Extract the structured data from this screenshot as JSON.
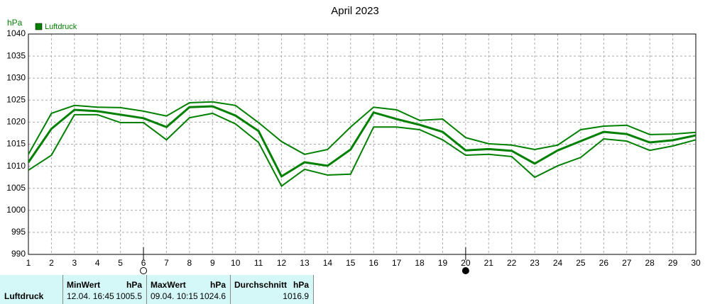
{
  "chart_data": {
    "type": "line",
    "title": "April 2023",
    "y_unit": "hPa",
    "x": [
      1,
      2,
      3,
      4,
      5,
      6,
      7,
      8,
      9,
      10,
      11,
      12,
      13,
      14,
      15,
      16,
      17,
      18,
      19,
      20,
      21,
      22,
      23,
      24,
      25,
      26,
      27,
      28,
      29,
      30
    ],
    "series": [
      {
        "name": "Luftdruck",
        "color": "#008000",
        "values": [
          1010.9,
          1018.5,
          1022.8,
          1022.5,
          1021.7,
          1020.9,
          1018.9,
          1023.4,
          1023.6,
          1021.5,
          1018.0,
          1007.7,
          1010.9,
          1010.1,
          1013.8,
          1022.2,
          1020.7,
          1019.4,
          1017.8,
          1013.6,
          1013.9,
          1013.5,
          1010.6,
          1013.6,
          1015.7,
          1017.8,
          1017.3,
          1015.4,
          1015.9,
          1017.0
        ],
        "max": [
          1012.7,
          1022.0,
          1023.8,
          1023.4,
          1023.3,
          1022.5,
          1021.4,
          1024.4,
          1024.6,
          1023.8,
          1019.9,
          1015.6,
          1012.7,
          1013.8,
          1018.9,
          1023.4,
          1022.8,
          1020.4,
          1020.7,
          1016.5,
          1015.1,
          1014.8,
          1013.8,
          1014.8,
          1018.3,
          1019.1,
          1019.3,
          1017.2,
          1017.3,
          1017.7
        ],
        "min": [
          1009.1,
          1012.5,
          1021.7,
          1021.7,
          1019.9,
          1019.9,
          1016.0,
          1021.0,
          1022.0,
          1019.6,
          1015.4,
          1005.5,
          1009.3,
          1008.0,
          1008.2,
          1018.9,
          1018.9,
          1018.3,
          1016.0,
          1012.5,
          1012.7,
          1012.2,
          1007.5,
          1010.1,
          1012.0,
          1016.2,
          1015.7,
          1013.6,
          1014.6,
          1016.0
        ]
      }
    ],
    "xlim": [
      1,
      30
    ],
    "ylim": [
      990,
      1040
    ],
    "xticks": [
      1,
      2,
      3,
      4,
      5,
      6,
      7,
      8,
      9,
      10,
      11,
      12,
      13,
      14,
      15,
      16,
      17,
      18,
      19,
      20,
      21,
      22,
      23,
      24,
      25,
      26,
      27,
      28,
      29,
      30
    ],
    "yticks": [
      990,
      995,
      1000,
      1005,
      1010,
      1015,
      1020,
      1025,
      1030,
      1035,
      1040
    ],
    "grid": true,
    "moon": {
      "full": 6,
      "new": 20
    }
  },
  "stats": {
    "columns": [
      {
        "header": "MinWert",
        "unit": "hPa",
        "time": "12.04.  16:45",
        "value": 1005.5
      },
      {
        "header": "MaxWert",
        "unit": "hPa",
        "time": "09.04.  10:15",
        "value": 1024.6
      },
      {
        "header": "Durchschnitt",
        "unit": "hPa",
        "value": 1016.9
      }
    ]
  }
}
